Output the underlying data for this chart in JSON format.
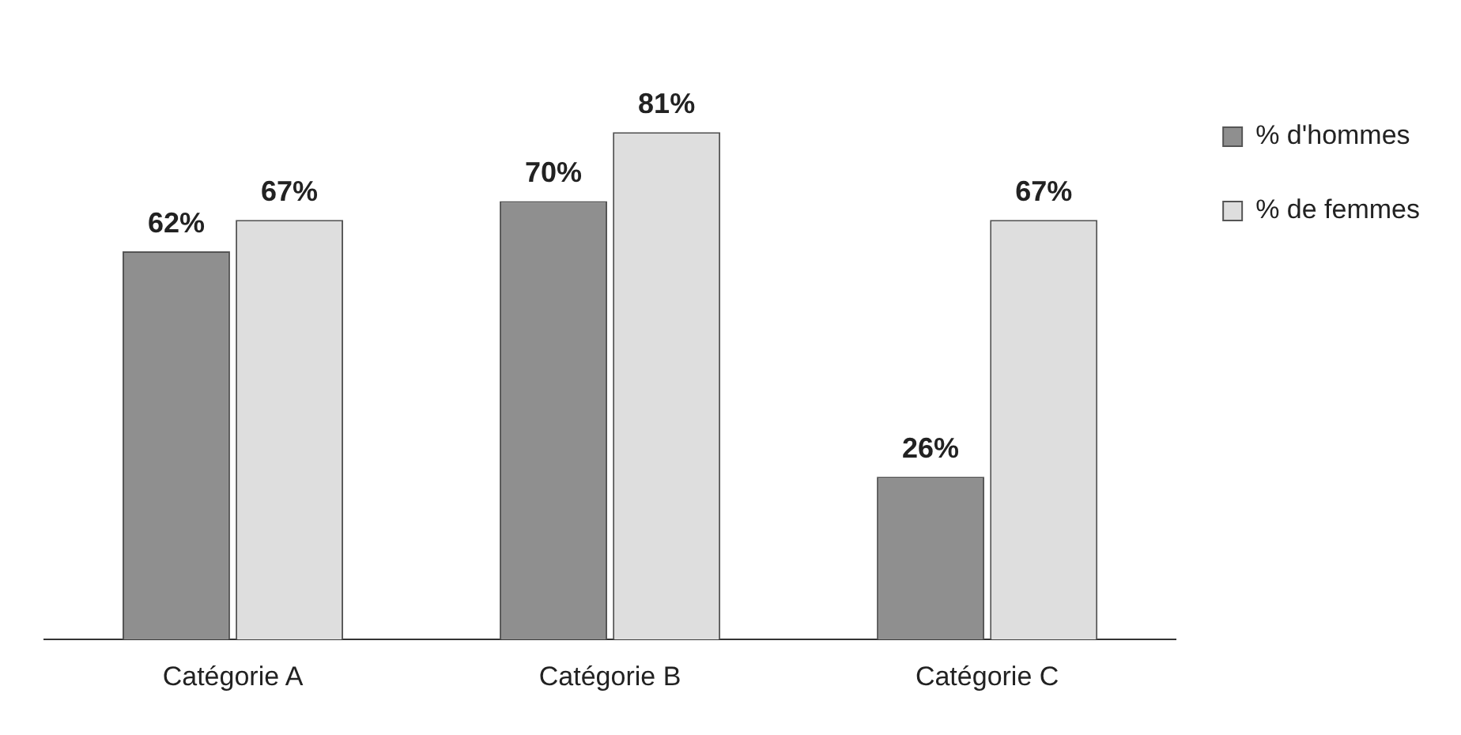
{
  "chart_data": {
    "type": "bar",
    "categories": [
      "Catégorie A",
      "Catégorie B",
      "Catégorie C"
    ],
    "series": [
      {
        "name": "% d'hommes",
        "color": "#8f8f8f",
        "values": [
          62,
          70,
          26
        ],
        "value_labels": [
          "62%",
          "70%",
          "26%"
        ]
      },
      {
        "name": "% de femmes",
        "color": "#dedede",
        "values": [
          67,
          81,
          67
        ],
        "value_labels": [
          "67%",
          "81%",
          "67%"
        ]
      }
    ],
    "legend": "top right",
    "grid": false
  }
}
